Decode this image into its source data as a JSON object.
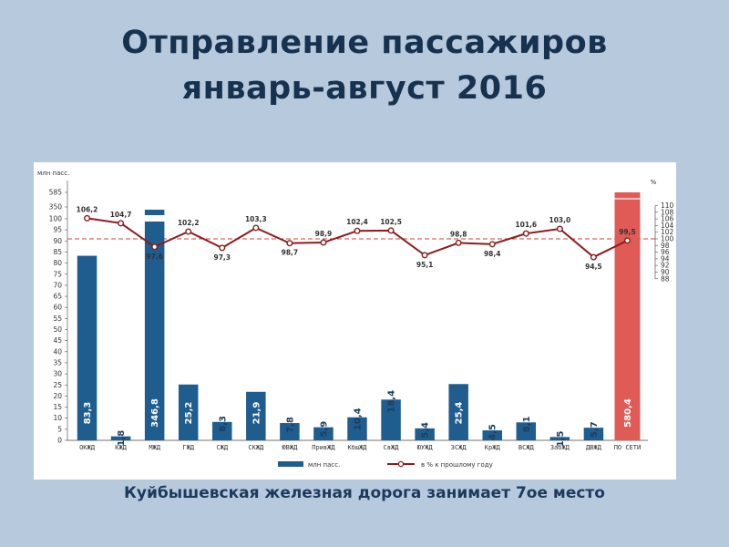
{
  "slide": {
    "title_line1": "Отправление пассажиров",
    "title_line2": "январь-август 2016",
    "caption": "Куйбышевская железная дорога занимает 7ое место"
  },
  "chart_data": {
    "type": "bar",
    "categories": [
      "ОКЖД",
      "КЖД",
      "МЖД",
      "ГЖД",
      "СЖД",
      "СКЖД",
      "ЮВЖД",
      "ПривЖД",
      "КбшЖД",
      "СвЖД",
      "ЮУЖД",
      "ЗСЖД",
      "КрЖД",
      "ВСЖД",
      "ЗабЖД",
      "ДВЖД",
      "ПО СЕТИ"
    ],
    "left_axis_unit": "млн пасс.",
    "left_axis_ticks": [
      "0",
      "5",
      "10",
      "15",
      "20",
      "25",
      "30",
      "35",
      "40",
      "45",
      "50",
      "55",
      "60",
      "65",
      "70",
      "75",
      "80",
      "85",
      "90",
      "95",
      "100",
      "350",
      "585"
    ],
    "right_axis_unit": "%",
    "right_axis_ticks": [
      "88",
      "90",
      "92",
      "94",
      "96",
      "98",
      "100",
      "102",
      "104",
      "106",
      "108",
      "110"
    ],
    "reference_line": 100,
    "series": [
      {
        "name": "млн пасс.",
        "values": [
          83.3,
          1.8,
          346.8,
          25.2,
          8.3,
          21.9,
          7.8,
          5.9,
          10.4,
          18.4,
          5.4,
          25.4,
          4.5,
          8.1,
          1.5,
          5.7,
          580.4
        ],
        "labels": [
          "83,3",
          "1,8",
          "346,8",
          "25,2",
          "8,3",
          "21,9",
          "7,8",
          "5,9",
          "10,4",
          "18,4",
          "5,4",
          "25,4",
          "4,5",
          "8,1",
          "1,5",
          "5,7",
          "580,4"
        ],
        "color": "#1f5d8f",
        "highlight_color": "#e05a56",
        "highlight_index": 16
      },
      {
        "name": "в % к прошлому году",
        "type": "line",
        "values": [
          106.2,
          104.7,
          97.6,
          102.2,
          97.3,
          103.3,
          98.7,
          98.9,
          102.4,
          102.5,
          95.1,
          98.8,
          98.4,
          101.6,
          103.0,
          94.5,
          99.5
        ],
        "labels": [
          "106,2",
          "104,7",
          "97,6",
          "102,2",
          "97,3",
          "103,3",
          "98,7",
          "98,9",
          "102,4",
          "102,5",
          "95,1",
          "98,8",
          "98,4",
          "101,6",
          "103,0",
          "94,5",
          "99,5"
        ],
        "color": "#8b1d1d"
      }
    ],
    "legend_position": "bottom"
  }
}
